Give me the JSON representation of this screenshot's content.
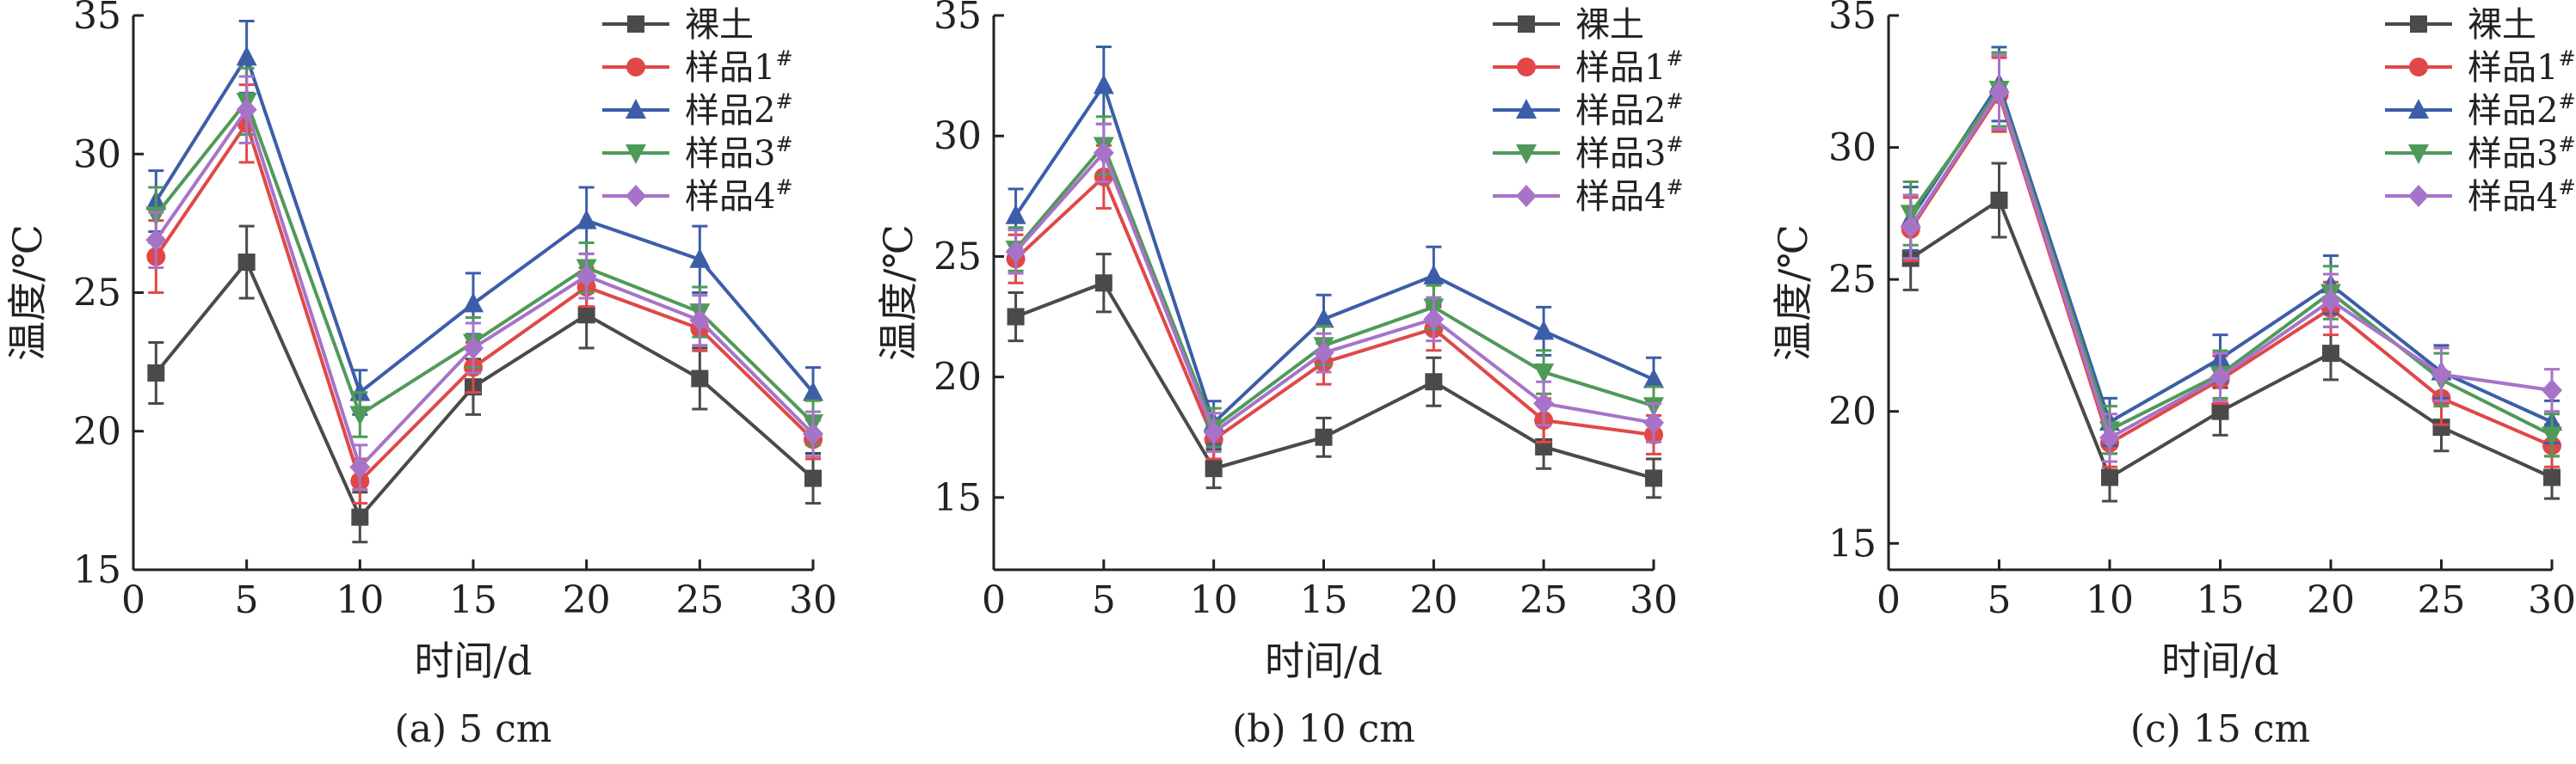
{
  "figure": {
    "colors": {
      "axis": "#222222",
      "series": [
        "#4a4a4a",
        "#e04848",
        "#3c5ea8",
        "#4f9a58",
        "#a773c8"
      ]
    },
    "markers": [
      "square",
      "circle",
      "triangle-up",
      "triangle-down",
      "diamond"
    ]
  },
  "chart_data": [
    {
      "type": "line",
      "caption": "(a) 5 cm",
      "xlabel": "时间/d",
      "ylabel": "温度/℃",
      "xlim": [
        0,
        30
      ],
      "ylim": [
        15,
        35
      ],
      "xticks": [
        0,
        5,
        10,
        15,
        20,
        25,
        30
      ],
      "yticks": [
        15,
        20,
        25,
        30,
        35
      ],
      "x": [
        1,
        5,
        10,
        15,
        20,
        25,
        30
      ],
      "legend_position": "top-right",
      "series": [
        {
          "name": "裸土",
          "sup": "",
          "values": [
            22.1,
            26.1,
            16.9,
            21.6,
            24.2,
            21.9,
            18.3
          ],
          "errors": [
            1.1,
            1.3,
            0.9,
            1.0,
            1.2,
            1.1,
            0.9
          ]
        },
        {
          "name": "样品1",
          "sup": "#",
          "values": [
            26.3,
            31.1,
            18.2,
            22.3,
            25.2,
            23.7,
            19.7
          ],
          "errors": [
            1.3,
            1.4,
            0.8,
            0.9,
            0.7,
            0.8,
            0.7
          ]
        },
        {
          "name": "样品2",
          "sup": "#",
          "values": [
            28.3,
            33.5,
            21.4,
            24.6,
            27.6,
            26.2,
            21.4
          ],
          "errors": [
            1.1,
            1.3,
            0.8,
            1.1,
            1.2,
            1.2,
            0.9
          ]
        },
        {
          "name": "样品3",
          "sup": "#",
          "values": [
            27.8,
            31.9,
            20.6,
            23.2,
            25.9,
            24.3,
            20.3
          ],
          "errors": [
            1.0,
            1.2,
            0.8,
            0.9,
            0.9,
            0.9,
            0.8
          ]
        },
        {
          "name": "样品4",
          "sup": "#",
          "values": [
            26.9,
            31.6,
            18.7,
            23.0,
            25.6,
            24.0,
            19.9
          ],
          "errors": [
            1.0,
            1.2,
            0.8,
            0.9,
            0.8,
            0.9,
            0.8
          ]
        }
      ]
    },
    {
      "type": "line",
      "caption": "(b) 10 cm",
      "xlabel": "时间/d",
      "ylabel": "温度/℃",
      "xlim": [
        0,
        30
      ],
      "ylim": [
        12,
        35
      ],
      "xticks": [
        0,
        5,
        10,
        15,
        20,
        25,
        30
      ],
      "yticks": [
        15,
        20,
        25,
        30,
        35
      ],
      "x": [
        1,
        5,
        10,
        15,
        20,
        25,
        30
      ],
      "legend_position": "top-right",
      "series": [
        {
          "name": "裸土",
          "sup": "",
          "values": [
            22.5,
            23.9,
            16.2,
            17.5,
            19.8,
            17.1,
            15.8
          ],
          "errors": [
            1.0,
            1.2,
            0.8,
            0.8,
            1.0,
            0.9,
            0.8
          ]
        },
        {
          "name": "样品1",
          "sup": "#",
          "values": [
            24.9,
            28.3,
            17.4,
            20.6,
            22.0,
            18.2,
            17.6
          ],
          "errors": [
            1.0,
            1.3,
            0.8,
            0.9,
            0.9,
            0.9,
            0.8
          ]
        },
        {
          "name": "样品2",
          "sup": "#",
          "values": [
            26.7,
            32.1,
            18.1,
            22.4,
            24.2,
            21.9,
            19.9
          ],
          "errors": [
            1.1,
            1.6,
            0.9,
            1.0,
            1.2,
            1.0,
            0.9
          ]
        },
        {
          "name": "样品3",
          "sup": "#",
          "values": [
            25.3,
            29.6,
            17.9,
            21.3,
            22.9,
            20.2,
            18.8
          ],
          "errors": [
            0.9,
            1.2,
            0.8,
            0.8,
            0.9,
            0.9,
            0.8
          ]
        },
        {
          "name": "样品4",
          "sup": "#",
          "values": [
            25.2,
            29.3,
            17.7,
            21.0,
            22.4,
            18.9,
            18.1
          ],
          "errors": [
            0.9,
            1.2,
            0.8,
            0.8,
            0.9,
            0.9,
            0.8
          ]
        }
      ]
    },
    {
      "type": "line",
      "caption": "(c) 15 cm",
      "xlabel": "时间/d",
      "ylabel": "温度/℃",
      "xlim": [
        0,
        30
      ],
      "ylim": [
        14,
        35
      ],
      "xticks": [
        0,
        5,
        10,
        15,
        20,
        25,
        30
      ],
      "yticks": [
        15,
        20,
        25,
        30,
        35
      ],
      "x": [
        1,
        5,
        10,
        15,
        20,
        25,
        30
      ],
      "legend_position": "top-right",
      "series": [
        {
          "name": "裸土",
          "sup": "",
          "values": [
            25.8,
            28.0,
            17.5,
            20.0,
            22.2,
            19.4,
            17.5
          ],
          "errors": [
            1.2,
            1.4,
            0.9,
            0.9,
            1.0,
            0.9,
            0.8
          ]
        },
        {
          "name": "样品1",
          "sup": "#",
          "values": [
            26.9,
            32.0,
            18.8,
            21.2,
            23.9,
            20.5,
            18.7
          ],
          "errors": [
            1.2,
            1.4,
            0.9,
            0.9,
            1.0,
            1.0,
            0.8
          ]
        },
        {
          "name": "样品2",
          "sup": "#",
          "values": [
            27.3,
            32.4,
            19.6,
            22.0,
            24.8,
            21.5,
            19.6
          ],
          "errors": [
            1.2,
            1.4,
            0.9,
            0.9,
            1.1,
            1.0,
            0.8
          ]
        },
        {
          "name": "样品3",
          "sup": "#",
          "values": [
            27.5,
            32.2,
            19.3,
            21.4,
            24.5,
            21.2,
            19.1
          ],
          "errors": [
            1.2,
            1.4,
            0.9,
            0.9,
            1.0,
            1.0,
            0.8
          ]
        },
        {
          "name": "样品4",
          "sup": "#",
          "values": [
            27.0,
            32.1,
            19.0,
            21.3,
            24.2,
            21.4,
            20.8
          ],
          "errors": [
            1.2,
            1.4,
            0.9,
            0.9,
            1.0,
            1.0,
            0.8
          ]
        }
      ]
    }
  ]
}
